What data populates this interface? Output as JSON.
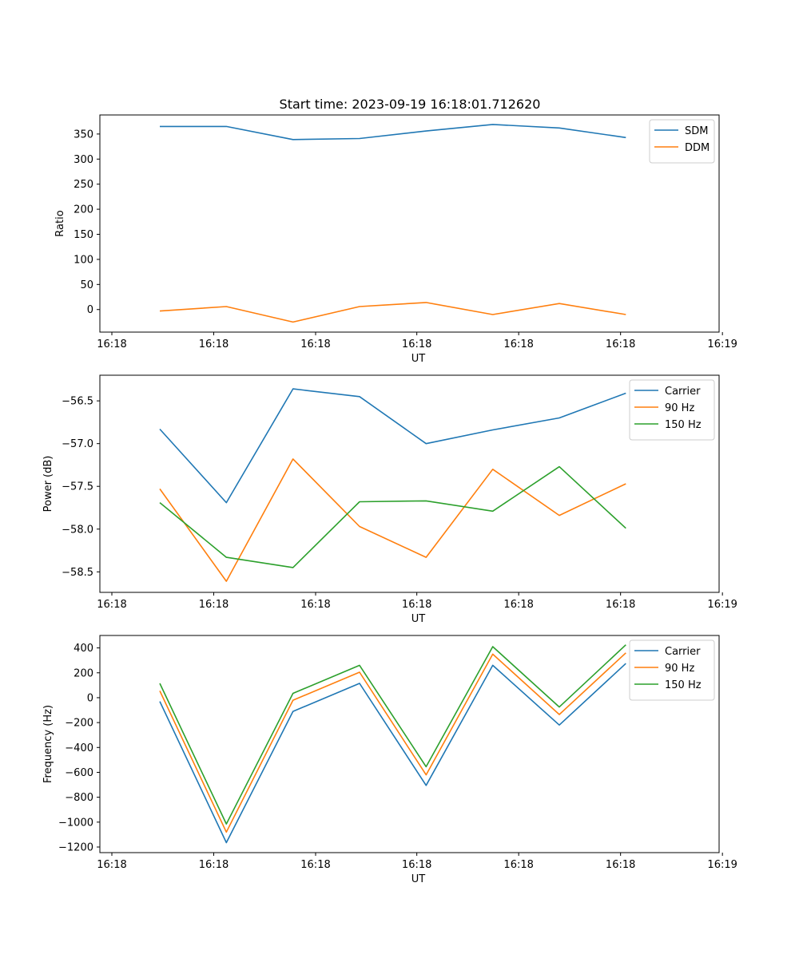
{
  "figure_title": "Start time: 2023-09-19 16:18:01.712620",
  "colors": {
    "blue": "#1f77b4",
    "orange": "#ff7f0e",
    "green": "#2ca02c"
  },
  "chart_data": [
    {
      "type": "line",
      "xlabel": "UT",
      "ylabel": "Ratio",
      "xlim": [
        -0.9,
        8.4
      ],
      "ylim": [
        -45,
        388
      ],
      "x": [
        0,
        1,
        2,
        3,
        4,
        5,
        6,
        7
      ],
      "x_ticks": [
        -0.72,
        0.81,
        2.34,
        3.86,
        5.39,
        6.92,
        8.45
      ],
      "x_tick_labels": [
        "16:18",
        "16:18",
        "16:18",
        "16:18",
        "16:18",
        "16:18",
        "16:19"
      ],
      "y_ticks": [
        0,
        50,
        100,
        150,
        200,
        250,
        300,
        350
      ],
      "y_tick_labels": [
        "0",
        "50",
        "100",
        "150",
        "200",
        "250",
        "300",
        "350"
      ],
      "legend_loc": "upper right",
      "series": [
        {
          "name": "SDM",
          "color": "#1f77b4",
          "values": [
            365,
            365,
            339,
            341,
            356,
            369,
            362,
            343
          ]
        },
        {
          "name": "DDM",
          "color": "#ff7f0e",
          "values": [
            -3,
            6,
            -25,
            6,
            14,
            -10,
            12,
            -10
          ]
        }
      ]
    },
    {
      "type": "line",
      "xlabel": "UT",
      "ylabel": "Power (dB)",
      "xlim": [
        -0.9,
        8.4
      ],
      "ylim": [
        -58.74,
        -56.2
      ],
      "x": [
        0,
        1,
        2,
        3,
        4,
        5,
        6,
        7
      ],
      "x_ticks": [
        -0.72,
        0.81,
        2.34,
        3.86,
        5.39,
        6.92,
        8.45
      ],
      "x_tick_labels": [
        "16:18",
        "16:18",
        "16:18",
        "16:18",
        "16:18",
        "16:18",
        "16:19"
      ],
      "y_ticks": [
        -58.5,
        -58.0,
        -57.5,
        -57.0,
        -56.5
      ],
      "y_tick_labels": [
        "−58.5",
        "−58.0",
        "−57.5",
        "−57.0",
        "−56.5"
      ],
      "legend_loc": "upper right",
      "series": [
        {
          "name": "Carrier",
          "color": "#1f77b4",
          "values": [
            -56.83,
            -57.69,
            -56.36,
            -56.45,
            -57.0,
            -56.84,
            -56.7,
            -56.41
          ]
        },
        {
          "name": "90 Hz",
          "color": "#ff7f0e",
          "values": [
            -57.53,
            -58.61,
            -57.18,
            -57.97,
            -58.33,
            -57.3,
            -57.84,
            -57.47
          ]
        },
        {
          "name": "150 Hz",
          "color": "#2ca02c",
          "values": [
            -57.69,
            -58.33,
            -58.45,
            -57.68,
            -57.67,
            -57.79,
            -57.27,
            -57.99
          ]
        }
      ]
    },
    {
      "type": "line",
      "xlabel": "UT",
      "ylabel": "Frequency (Hz)",
      "xlim": [
        -0.9,
        8.4
      ],
      "ylim": [
        -1245,
        500
      ],
      "x": [
        0,
        1,
        2,
        3,
        4,
        5,
        6,
        7
      ],
      "x_ticks": [
        -0.72,
        0.81,
        2.34,
        3.86,
        5.39,
        6.92,
        8.45
      ],
      "x_tick_labels": [
        "16:18",
        "16:18",
        "16:18",
        "16:18",
        "16:18",
        "16:18",
        "16:19"
      ],
      "y_ticks": [
        -1200,
        -1000,
        -800,
        -600,
        -400,
        -200,
        0,
        200,
        400
      ],
      "y_tick_labels": [
        "−1200",
        "−1000",
        "−800",
        "−600",
        "−400",
        "−200",
        "0",
        "200",
        "400"
      ],
      "legend_loc": "upper right",
      "series": [
        {
          "name": "Carrier",
          "color": "#1f77b4",
          "values": [
            -30,
            -1165,
            -110,
            115,
            -705,
            260,
            -220,
            275
          ]
        },
        {
          "name": "90 Hz",
          "color": "#ff7f0e",
          "values": [
            55,
            -1080,
            -20,
            205,
            -620,
            350,
            -135,
            360
          ]
        },
        {
          "name": "150 Hz",
          "color": "#2ca02c",
          "values": [
            115,
            -1015,
            35,
            260,
            -555,
            410,
            -75,
            425
          ]
        }
      ]
    }
  ]
}
